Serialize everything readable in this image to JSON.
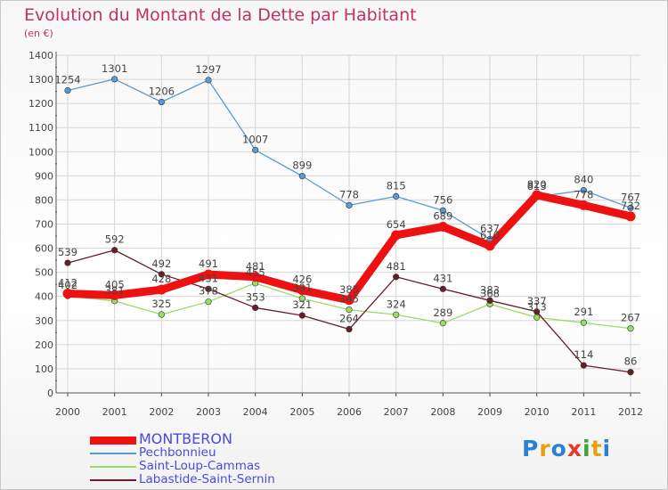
{
  "title": "Evolution du Montant de la Dette par Habitant",
  "unit": "(en €)",
  "logo": {
    "text": "Proxiti",
    "colors": [
      "#2a7fd6",
      "#e8a010",
      "#2a7fd6",
      "#e23a2a",
      "#3aa53a",
      "#e8a010",
      "#2a7fd6"
    ]
  },
  "chart_data": {
    "type": "line",
    "title": "Evolution du Montant de la Dette par Habitant",
    "ylabel": "(en €)",
    "xlabel": "",
    "ylim": [
      0,
      1400
    ],
    "yticks": [
      0,
      100,
      200,
      300,
      400,
      500,
      600,
      700,
      800,
      900,
      1000,
      1100,
      1200,
      1300,
      1400
    ],
    "grid": true,
    "legend_position": "bottom-left",
    "x": [
      "2000",
      "2001",
      "2002",
      "2003",
      "2004",
      "2005",
      "2006",
      "2007",
      "2008",
      "2009",
      "2010",
      "2011",
      "2012"
    ],
    "series": [
      {
        "name": "MONTBERON",
        "color": "#ee1111",
        "values": [
          412,
          405,
          428,
          491,
          481,
          426,
          385,
          654,
          689,
          610,
          820,
          778,
          732
        ]
      },
      {
        "name": "Pechbonnieu",
        "color": "#5a9bd4",
        "values": [
          1254,
          1301,
          1206,
          1297,
          1007,
          899,
          778,
          815,
          756,
          637,
          813,
          840,
          767
        ]
      },
      {
        "name": "Saint-Loup-Cammas",
        "color": "#99dd66",
        "values": [
          402,
          381,
          325,
          378,
          455,
          391,
          345,
          324,
          289,
          368,
          313,
          291,
          267
        ]
      },
      {
        "name": "Labastide-Saint-Sernin",
        "color": "#6a1d26",
        "values": [
          539,
          592,
          492,
          431,
          353,
          321,
          264,
          481,
          431,
          383,
          337,
          114,
          86
        ]
      }
    ]
  }
}
